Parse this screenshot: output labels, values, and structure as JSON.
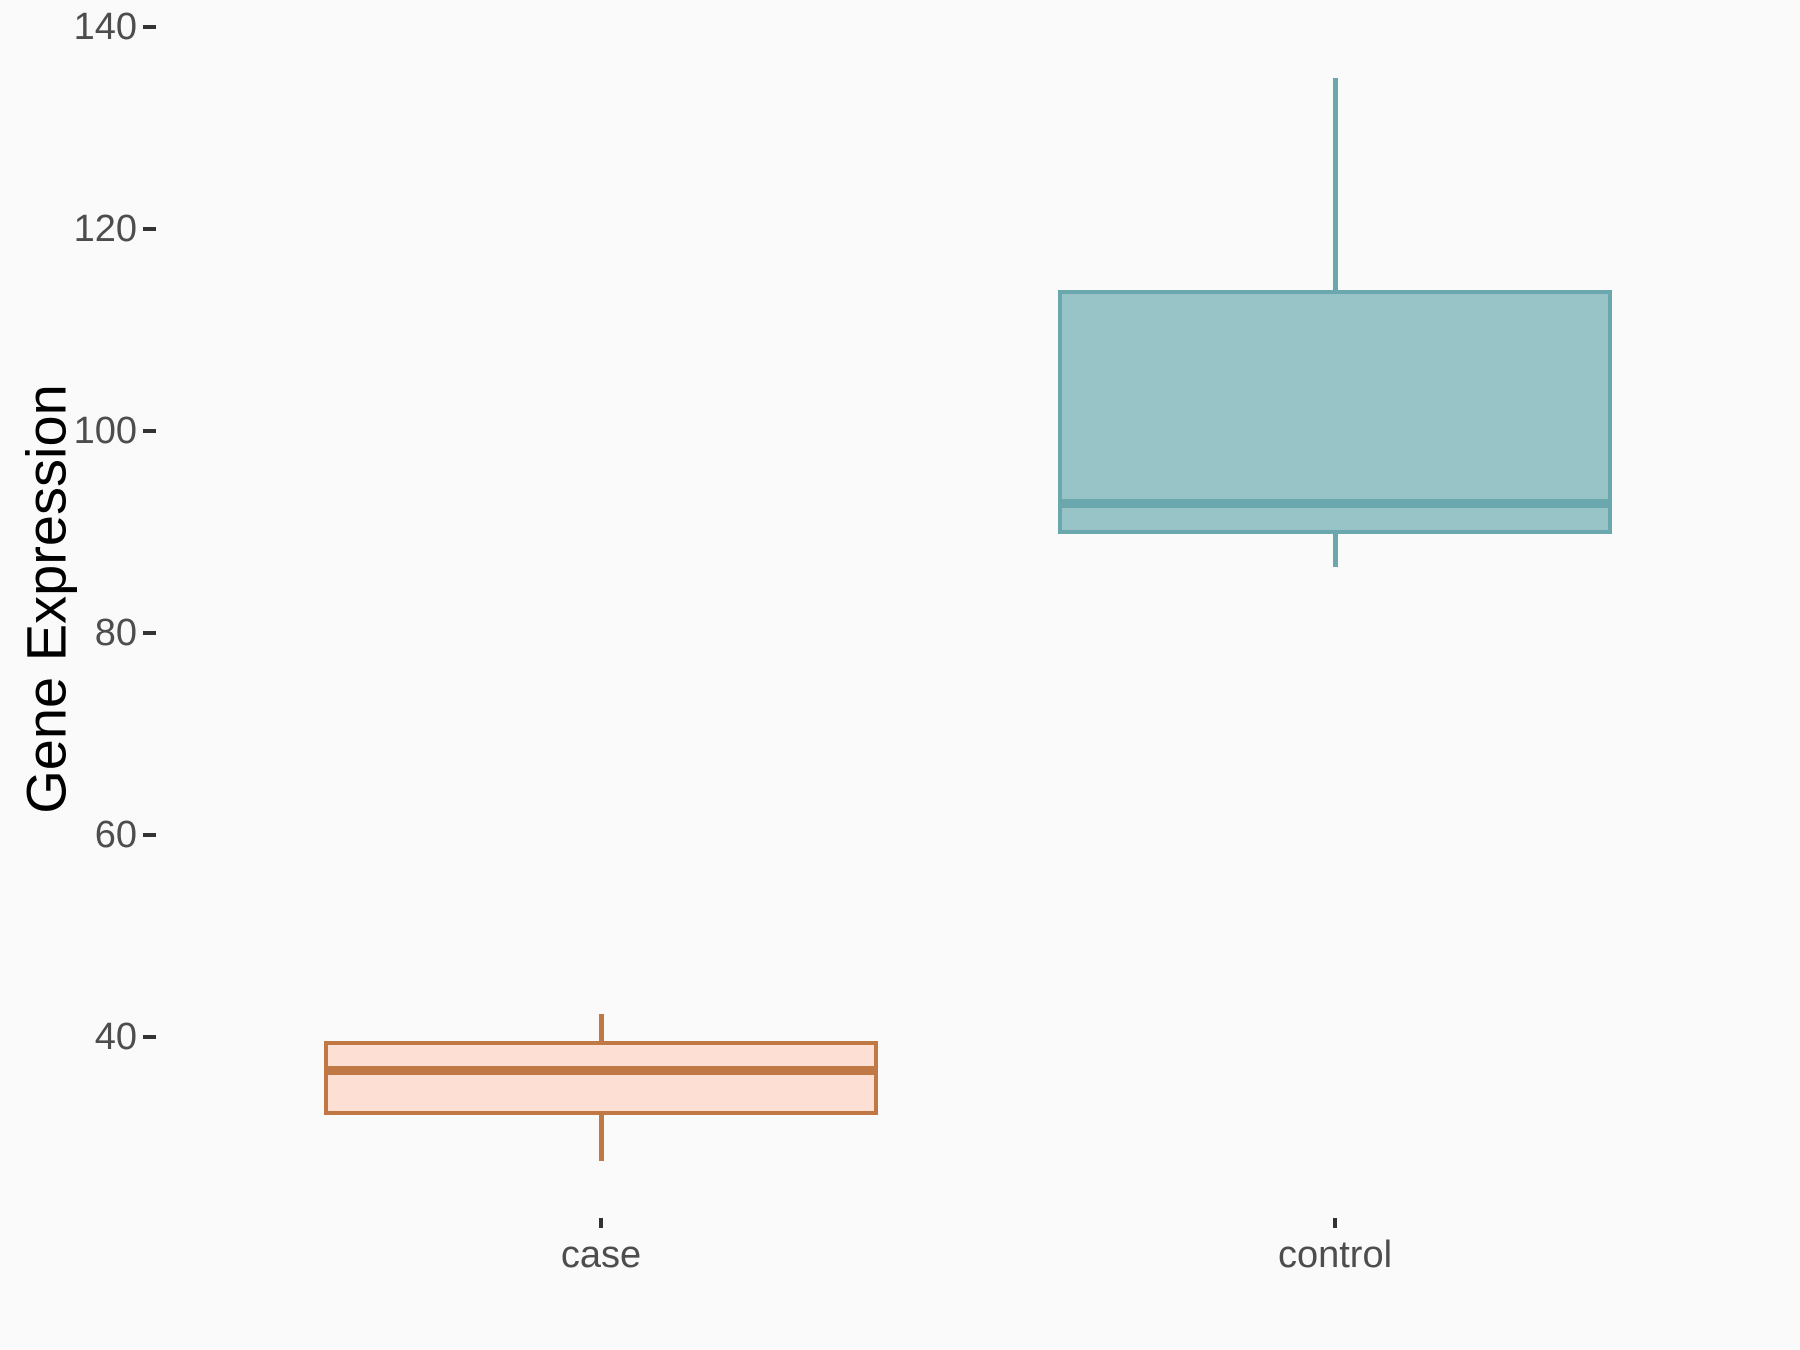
{
  "background": "#FAFAFA",
  "chart_data": {
    "type": "boxplot",
    "orientation": "vertical",
    "title": "",
    "xlabel": "",
    "ylabel": "Gene Expression",
    "categories": [
      "case",
      "control"
    ],
    "y_ticks": [
      140,
      120,
      100,
      80,
      60,
      40
    ],
    "ylim": [
      23,
      142
    ],
    "grid": false,
    "legend": false,
    "axis_text_color": "#4D4D4D",
    "axis_tick_color": "#333333",
    "axis_title_color": "#000000",
    "series": [
      {
        "name": "case",
        "min": 27.7,
        "q1": 32.3,
        "median": 36.7,
        "q3": 39.6,
        "max": 42.3,
        "fill": "#FDDFD3",
        "stroke": "#C07844"
      },
      {
        "name": "control",
        "min": 86.5,
        "q1": 89.8,
        "median": 92.8,
        "q3": 114.0,
        "max": 135.0,
        "fill": "#99C4C7",
        "stroke": "#6AA8AE"
      }
    ]
  }
}
